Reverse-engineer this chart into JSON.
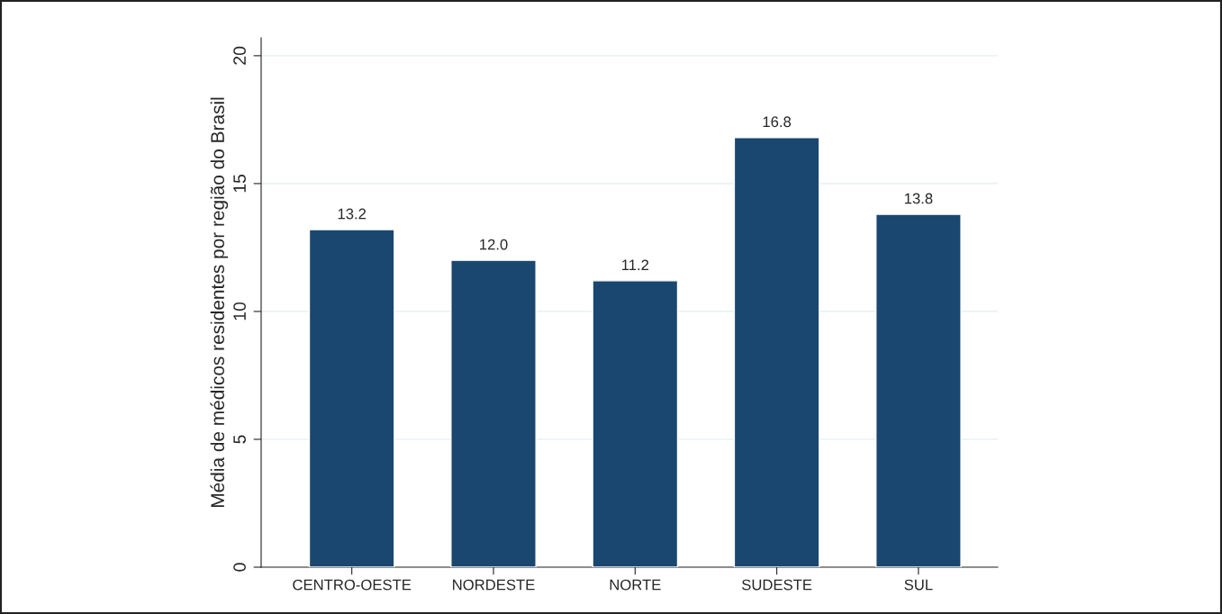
{
  "chart_data": {
    "type": "bar",
    "ylabel": "Média de médicos residentes por região do Brasil",
    "categories": [
      "CENTRO-OESTE",
      "NORDESTE",
      "NORTE",
      "SUDESTE",
      "SUL"
    ],
    "values": [
      13.2,
      12.0,
      11.2,
      16.8,
      13.8
    ],
    "value_labels": [
      "13.2",
      "12.0",
      "11.2",
      "16.8",
      "13.8"
    ],
    "color": "#1a476f",
    "ylim": [
      0,
      20.7
    ],
    "yticks": [
      0,
      5,
      10,
      15,
      20
    ],
    "grid": "y"
  }
}
